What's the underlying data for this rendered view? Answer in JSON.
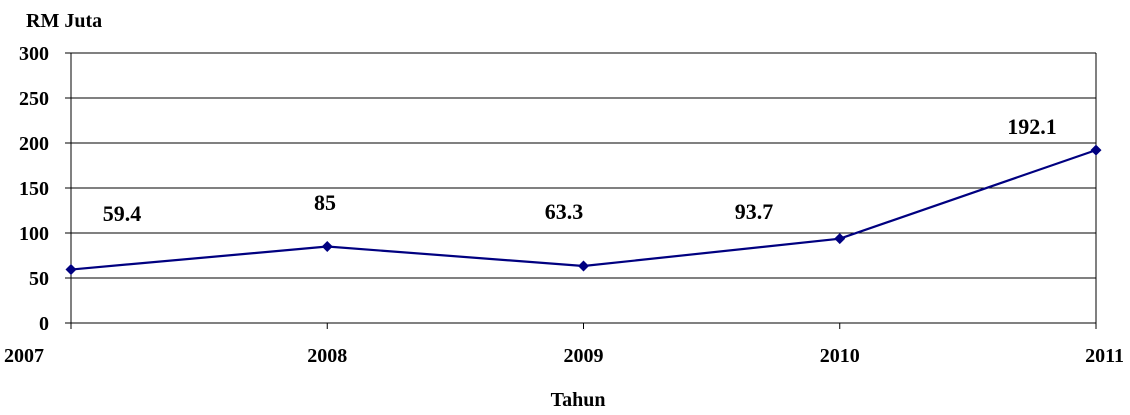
{
  "chart_data": {
    "type": "line",
    "ylabel": "RM Juta",
    "xlabel": "Tahun",
    "categories": [
      "2007",
      "2008",
      "2009",
      "2010",
      "2011"
    ],
    "values": [
      59.4,
      85,
      63.3,
      93.7,
      192.1
    ],
    "data_labels": [
      "59.4",
      "85",
      "63.3",
      "93.7",
      "192.1"
    ],
    "ylim": [
      0,
      300
    ],
    "yticks": [
      "0",
      "50",
      "100",
      "150",
      "200",
      "250",
      "300"
    ],
    "grid": true,
    "legend": "none",
    "colors": {
      "line": "#000080",
      "marker": "#000080",
      "grid": "#000000"
    },
    "marker": "diamond-icon"
  }
}
